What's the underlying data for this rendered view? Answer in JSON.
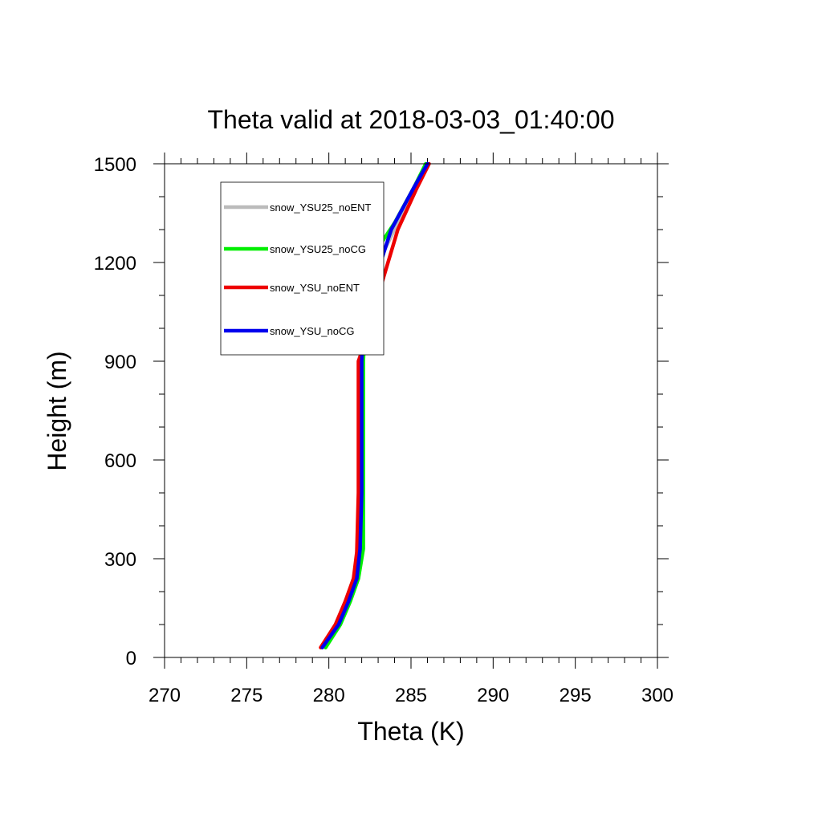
{
  "chart_data": {
    "type": "line",
    "title": "Theta valid at 2018-03-03_01:40:00",
    "xlabel": "Theta (K)",
    "ylabel": "Height (m)",
    "xlim": [
      270,
      300
    ],
    "ylim": [
      0,
      1500
    ],
    "xticks": [
      270,
      275,
      280,
      285,
      290,
      295,
      300
    ],
    "yticks": [
      0,
      300,
      600,
      900,
      1200,
      1500
    ],
    "legend_position": "top-left",
    "series": [
      {
        "name": "snow_YSU25_noENT",
        "color": "#bbbbbb",
        "points": [
          [
            279.6,
            30
          ],
          [
            280.4,
            100
          ],
          [
            281.0,
            170
          ],
          [
            281.5,
            240
          ],
          [
            281.8,
            320
          ],
          [
            281.9,
            500
          ],
          [
            282.0,
            700
          ],
          [
            282.0,
            900
          ],
          [
            282.1,
            1080
          ],
          [
            282.9,
            1190
          ],
          [
            284.0,
            1300
          ],
          [
            285.2,
            1420
          ],
          [
            286.0,
            1500
          ]
        ]
      },
      {
        "name": "snow_YSU25_noCG",
        "color": "#00ee00",
        "points": [
          [
            279.8,
            30
          ],
          [
            280.7,
            100
          ],
          [
            281.3,
            170
          ],
          [
            281.8,
            240
          ],
          [
            282.1,
            330
          ],
          [
            282.1,
            500
          ],
          [
            282.1,
            700
          ],
          [
            282.1,
            900
          ],
          [
            282.3,
            1100
          ],
          [
            282.4,
            1200
          ],
          [
            284.0,
            1320
          ],
          [
            285.2,
            1430
          ],
          [
            285.9,
            1500
          ]
        ]
      },
      {
        "name": "snow_YSU_noENT",
        "color": "#ee0000",
        "points": [
          [
            279.5,
            30
          ],
          [
            280.4,
            100
          ],
          [
            281.0,
            170
          ],
          [
            281.5,
            240
          ],
          [
            281.7,
            320
          ],
          [
            281.8,
            500
          ],
          [
            281.8,
            700
          ],
          [
            281.8,
            900
          ],
          [
            282.5,
            1000
          ],
          [
            283.0,
            1100
          ],
          [
            284.2,
            1300
          ],
          [
            285.3,
            1420
          ],
          [
            286.1,
            1500
          ]
        ]
      },
      {
        "name": "snow_YSU_noCG",
        "color": "#0000ee",
        "points": [
          [
            279.6,
            30
          ],
          [
            280.6,
            100
          ],
          [
            281.2,
            170
          ],
          [
            281.7,
            240
          ],
          [
            281.9,
            330
          ],
          [
            282.0,
            500
          ],
          [
            282.0,
            700
          ],
          [
            282.0,
            900
          ],
          [
            282.1,
            1000
          ],
          [
            282.5,
            1100
          ],
          [
            283.8,
            1300
          ],
          [
            285.2,
            1430
          ],
          [
            286.0,
            1500
          ]
        ]
      }
    ]
  }
}
